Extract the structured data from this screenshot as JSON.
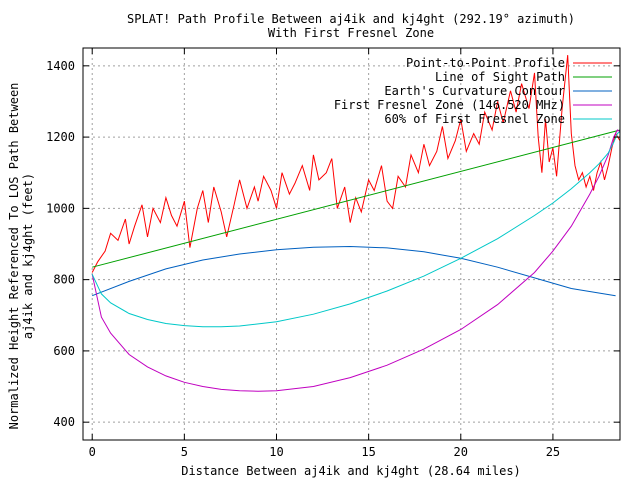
{
  "chart_data": {
    "type": "line",
    "title": "SPLAT! Path Profile Between aj4ik and kj4ght (292.19° azimuth)",
    "subtitle": "With First Fresnel Zone",
    "xlabel": "Distance Between aj4ik and kj4ght (28.64 miles)",
    "ylabel_line1": "Normalized Height Referenced To LOS Path Between",
    "ylabel_line2": "aj4ik and kj4ght (feet)",
    "xlim": [
      -0.5,
      28.64
    ],
    "ylim": [
      350,
      1450
    ],
    "x_ticks": [
      0,
      5,
      10,
      15,
      20,
      25
    ],
    "x_tick_labels": [
      "0",
      "5",
      "10",
      "15",
      "20",
      "25"
    ],
    "y_ticks": [
      400,
      600,
      800,
      1000,
      1200,
      1400
    ],
    "y_tick_labels": [
      "400",
      "600",
      "800",
      "1000",
      "1200",
      "1400"
    ],
    "grid": true,
    "legend_position": "top-right",
    "series": [
      {
        "name": "Point-to-Point Profile",
        "color": "#ff0000",
        "x": [
          0,
          0.3,
          0.7,
          1.0,
          1.4,
          1.8,
          2.0,
          2.3,
          2.7,
          3.0,
          3.3,
          3.7,
          4.0,
          4.3,
          4.6,
          5.0,
          5.3,
          5.7,
          6.0,
          6.3,
          6.6,
          7.0,
          7.3,
          7.7,
          8.0,
          8.4,
          8.8,
          9.0,
          9.3,
          9.7,
          10.0,
          10.3,
          10.7,
          11.0,
          11.4,
          11.8,
          12.0,
          12.3,
          12.7,
          13.0,
          13.3,
          13.7,
          14.0,
          14.3,
          14.6,
          15.0,
          15.3,
          15.7,
          16.0,
          16.3,
          16.6,
          17.0,
          17.3,
          17.7,
          18.0,
          18.3,
          18.7,
          19.0,
          19.3,
          19.7,
          20.0,
          20.3,
          20.7,
          21.0,
          21.3,
          21.7,
          22.0,
          22.3,
          22.7,
          23.0,
          23.3,
          23.7,
          24.0,
          24.2,
          24.4,
          24.6,
          24.8,
          25.0,
          25.2,
          25.5,
          25.8,
          26.0,
          26.2,
          26.4,
          26.6,
          26.8,
          27.0,
          27.2,
          27.4,
          27.6,
          27.8,
          28.0,
          28.2,
          28.4,
          28.64
        ],
        "y": [
          820,
          850,
          880,
          930,
          910,
          970,
          900,
          950,
          1010,
          920,
          1000,
          960,
          1030,
          980,
          950,
          1020,
          890,
          1000,
          1050,
          960,
          1060,
          990,
          920,
          1010,
          1080,
          1000,
          1060,
          1020,
          1090,
          1050,
          1000,
          1100,
          1040,
          1070,
          1120,
          1050,
          1150,
          1080,
          1100,
          1140,
          1000,
          1060,
          960,
          1030,
          990,
          1080,
          1050,
          1120,
          1020,
          1000,
          1090,
          1060,
          1150,
          1100,
          1180,
          1120,
          1160,
          1230,
          1140,
          1190,
          1250,
          1160,
          1210,
          1180,
          1270,
          1220,
          1300,
          1240,
          1330,
          1270,
          1350,
          1280,
          1380,
          1200,
          1100,
          1250,
          1130,
          1170,
          1090,
          1280,
          1430,
          1210,
          1120,
          1080,
          1100,
          1060,
          1090,
          1050,
          1100,
          1130,
          1080,
          1120,
          1170,
          1210,
          1190
        ]
      },
      {
        "name": "Line of Sight Path",
        "color": "#00a000",
        "x": [
          0,
          28.64
        ],
        "y": [
          835,
          1220
        ]
      },
      {
        "name": "Earth's Curvature Contour",
        "color": "#0060c0",
        "x": [
          0,
          2,
          4,
          6,
          8,
          10,
          12,
          14,
          16,
          18,
          20,
          22,
          24,
          26,
          28.4
        ],
        "y": [
          755,
          795,
          830,
          855,
          872,
          884,
          891,
          893,
          889,
          878,
          860,
          835,
          805,
          775,
          755
        ]
      },
      {
        "name": "First Fresnel Zone (146.520 MHz)",
        "color": "#c000c0",
        "x": [
          0,
          0.5,
          1,
          2,
          3,
          4,
          5,
          6,
          7,
          8,
          9,
          10,
          12,
          14,
          16,
          18,
          20,
          22,
          24,
          25,
          26,
          27,
          27.5,
          28,
          28.3,
          28.5,
          28.64
        ],
        "y": [
          815,
          695,
          650,
          590,
          555,
          530,
          512,
          500,
          492,
          488,
          487,
          488,
          500,
          525,
          560,
          605,
          660,
          730,
          820,
          880,
          950,
          1040,
          1090,
          1150,
          1200,
          1220,
          1215
        ]
      },
      {
        "name": "60% of First Fresnel Zone",
        "color": "#00c8c8",
        "x": [
          0,
          0.5,
          1,
          2,
          3,
          4,
          5,
          6,
          7,
          8,
          10,
          12,
          14,
          16,
          18,
          20,
          22,
          24,
          25,
          26,
          27,
          27.5,
          28,
          28.3,
          28.5,
          28.64
        ],
        "y": [
          815,
          760,
          735,
          705,
          688,
          677,
          671,
          668,
          668,
          670,
          682,
          703,
          732,
          768,
          810,
          860,
          915,
          980,
          1015,
          1055,
          1100,
          1125,
          1155,
          1185,
          1210,
          1215
        ]
      }
    ]
  }
}
